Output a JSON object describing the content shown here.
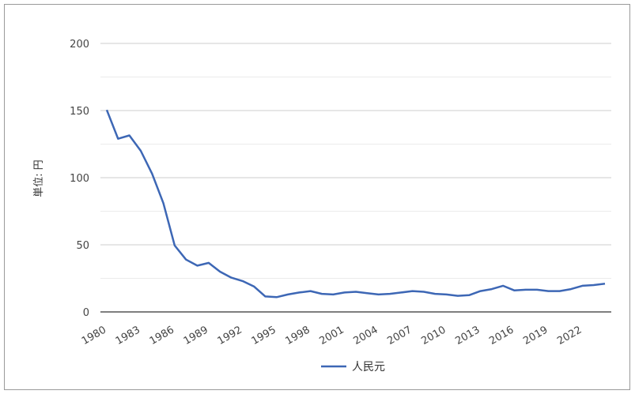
{
  "chart_data": {
    "type": "line",
    "ylabel": "単位: 円",
    "ylim": [
      0,
      200
    ],
    "yticks": [
      "0",
      "50",
      "100",
      "150",
      "200"
    ],
    "grid": true,
    "legend_position": "bottom",
    "x": [
      1980,
      1981,
      1982,
      1983,
      1984,
      1985,
      1986,
      1987,
      1988,
      1989,
      1990,
      1991,
      1992,
      1993,
      1994,
      1995,
      1996,
      1997,
      1998,
      1999,
      2000,
      2001,
      2002,
      2003,
      2004,
      2005,
      2006,
      2007,
      2008,
      2009,
      2010,
      2011,
      2012,
      2013,
      2014,
      2015,
      2016,
      2017,
      2018,
      2019,
      2020,
      2021,
      2022,
      2023,
      2024
    ],
    "xtick_labels": [
      "1980",
      "1983",
      "1986",
      "1989",
      "1992",
      "1995",
      "1998",
      "2001",
      "2004",
      "2007",
      "2010",
      "2013",
      "2016",
      "2019",
      "2022"
    ],
    "series": [
      {
        "name": "人民元",
        "color": "#3d67b5",
        "values": [
          150.5,
          129,
          131.5,
          120,
          103,
          81,
          49.5,
          39,
          34.5,
          36.5,
          30,
          25.5,
          23,
          19,
          11.5,
          11,
          13,
          14.5,
          15.5,
          13.5,
          13,
          14.5,
          15,
          14,
          13,
          13.5,
          14.5,
          15.5,
          15,
          13.5,
          13,
          12,
          12.5,
          15.5,
          17,
          19.5,
          16,
          16.5,
          16.5,
          15.5,
          15.5,
          17,
          19.5,
          20,
          21
        ]
      }
    ]
  }
}
